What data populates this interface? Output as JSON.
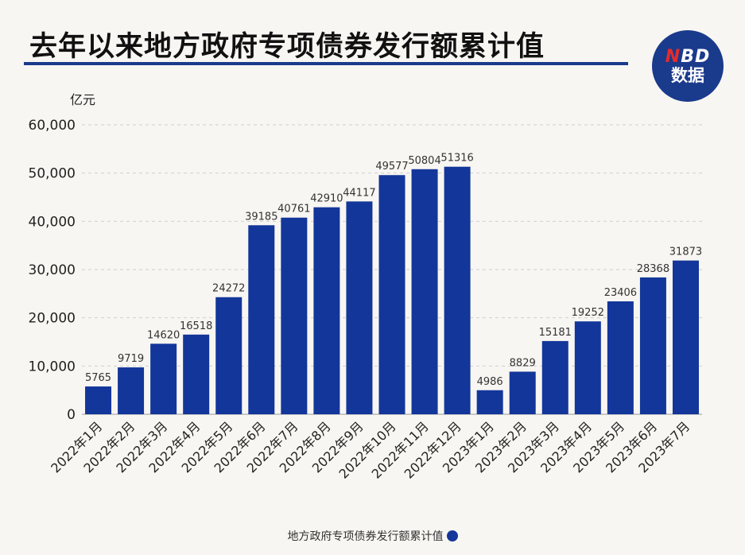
{
  "title": "去年以来地方政府专项债券发行额累计值",
  "logo": {
    "brand_n": "N",
    "brand_rest": "BD",
    "sub": "数据"
  },
  "colors": {
    "bar": "#13369a",
    "title_rule": "#1a3a8c",
    "grid": "#cfcfcf"
  },
  "chart_data": {
    "type": "bar",
    "title": "去年以来地方政府专项债券发行额累计值",
    "ylabel": "亿元",
    "xlabel": "",
    "ylim": [
      0,
      60000
    ],
    "yticks": [
      0,
      10000,
      20000,
      30000,
      40000,
      50000,
      60000
    ],
    "ytick_labels": [
      "0",
      "10,000",
      "20,000",
      "30,000",
      "40,000",
      "50,000",
      "60,000"
    ],
    "grid": true,
    "legend_position": "bottom-center",
    "categories": [
      "2022年1月",
      "2022年2月",
      "2022年3月",
      "2022年4月",
      "2022年5月",
      "2022年6月",
      "2022年7月",
      "2022年8月",
      "2022年9月",
      "2022年10月",
      "2022年11月",
      "2022年12月",
      "2023年1月",
      "2023年2月",
      "2023年3月",
      "2023年4月",
      "2023年5月",
      "2023年6月",
      "2023年7月"
    ],
    "series": [
      {
        "name": "地方政府专项债券发行额累计值",
        "values": [
          5765,
          9719,
          14620,
          16518,
          24272,
          39185,
          40761,
          42910,
          44117,
          49577,
          50804,
          51316,
          4986,
          8829,
          15181,
          19252,
          23406,
          28368,
          31873
        ]
      }
    ]
  },
  "legend": {
    "label": "地方政府专项债券发行额累计值"
  }
}
